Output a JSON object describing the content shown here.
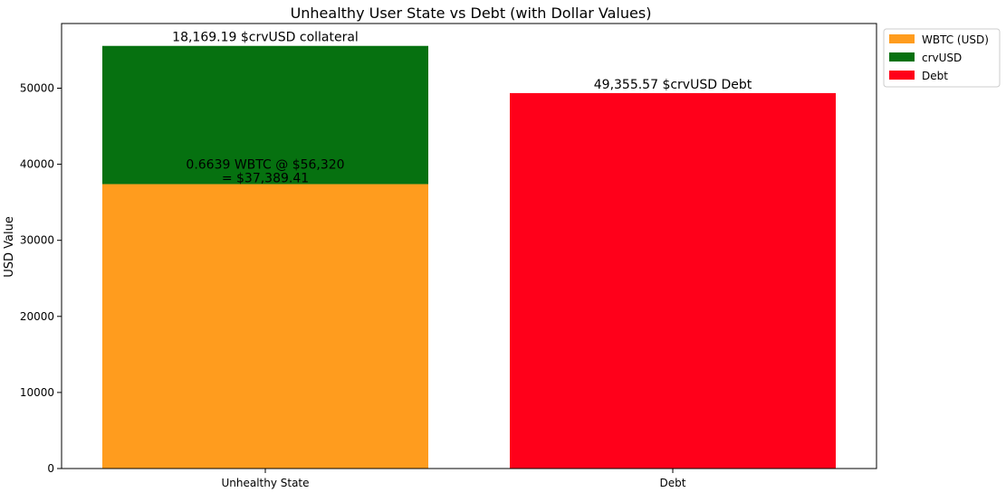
{
  "chart_data": {
    "type": "bar",
    "title": "Unhealthy User State vs Debt (with Dollar Values)",
    "xlabel": "",
    "ylabel": "USD Value",
    "ylim": [
      0,
      58500
    ],
    "yticks": [
      0,
      10000,
      20000,
      30000,
      40000,
      50000
    ],
    "ytick_labels": [
      "0",
      "10000",
      "20000",
      "30000",
      "40000",
      "50000"
    ],
    "categories": [
      "Unhealthy State",
      "Debt"
    ],
    "series": [
      {
        "name": "WBTC (USD)",
        "color": "#ff9c1e",
        "values": [
          37389.41,
          0
        ]
      },
      {
        "name": "crvUSD",
        "color": "#067110",
        "values": [
          18169.19,
          0
        ]
      },
      {
        "name": "Debt",
        "color": "#ff001a",
        "values": [
          0,
          49355.57
        ]
      }
    ],
    "annotations": [
      {
        "text": "18,169.19 $crvUSD collateral",
        "category": 0,
        "at_value": 55558.6
      },
      {
        "text": "49,355.57 $crvUSD Debt",
        "category": 1,
        "at_value": 49355.57
      },
      {
        "lines": [
          "0.6639 WBTC @ $56,320",
          "= $37,389.41"
        ],
        "category": 0,
        "at_value": 37389.41
      }
    ],
    "legend_position": "outside-top-right",
    "grid": false
  }
}
